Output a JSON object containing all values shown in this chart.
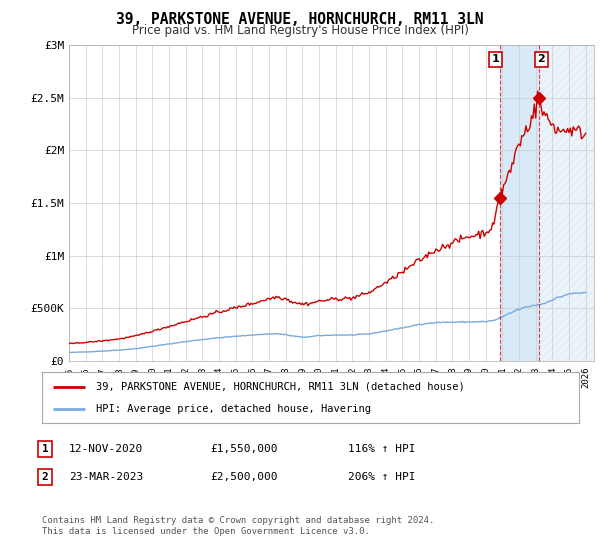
{
  "title": "39, PARKSTONE AVENUE, HORNCHURCH, RM11 3LN",
  "subtitle": "Price paid vs. HM Land Registry's House Price Index (HPI)",
  "legend_line1": "39, PARKSTONE AVENUE, HORNCHURCH, RM11 3LN (detached house)",
  "legend_line2": "HPI: Average price, detached house, Havering",
  "annotation1_date": "12-NOV-2020",
  "annotation1_price": "£1,550,000",
  "annotation1_hpi": "116% ↑ HPI",
  "annotation2_date": "23-MAR-2023",
  "annotation2_price": "£2,500,000",
  "annotation2_hpi": "206% ↑ HPI",
  "footer": "Contains HM Land Registry data © Crown copyright and database right 2024.\nThis data is licensed under the Open Government Licence v3.0.",
  "hpi_color": "#7aabdb",
  "price_color": "#cc0000",
  "annotation_box_color": "#cc0000",
  "shaded_region_color": "#d8eaf7",
  "ylim": [
    0,
    3000000
  ],
  "yticks": [
    0,
    500000,
    1000000,
    1500000,
    2000000,
    2500000,
    3000000
  ],
  "ytick_labels": [
    "£0",
    "£500K",
    "£1M",
    "£1.5M",
    "£2M",
    "£2.5M",
    "£3M"
  ],
  "ann1_x": 2020.88,
  "ann1_y": 1550000,
  "ann2_x": 2023.23,
  "ann2_y": 2500000,
  "shade_x1": 2020.88,
  "shade_x2": 2023.23,
  "hatch_x1": 2023.23,
  "hatch_x2": 2026.5,
  "background_color": "#ffffff",
  "grid_color": "#cccccc",
  "xlim_left": 1995.0,
  "xlim_right": 2026.5
}
